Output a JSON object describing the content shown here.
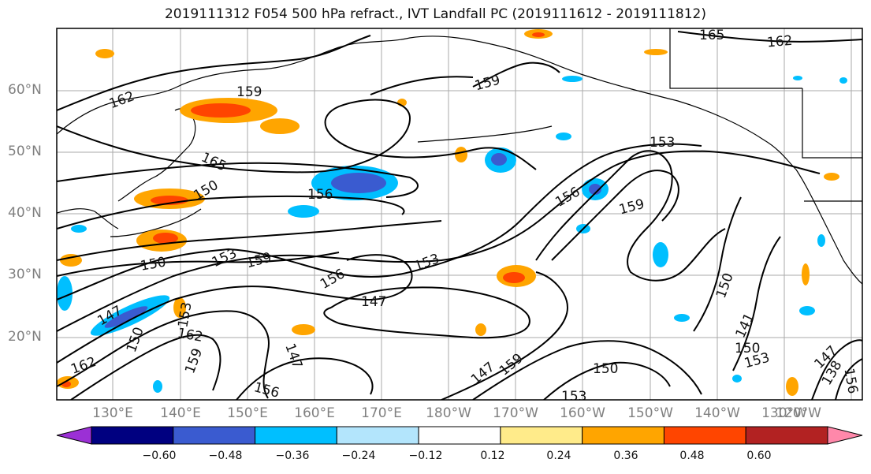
{
  "title": "2019111312 F054 500 hPa refract., IVT Landfall PC (2019111612 - 2019111812)",
  "lat_labels": [
    "60°N",
    "50°N",
    "40°N",
    "30°N",
    "20°N"
  ],
  "lon_labels": [
    "130°E",
    "140°E",
    "150°E",
    "160°E",
    "170°E",
    "180°W",
    "170°W",
    "160°W",
    "150°W",
    "140°W",
    "130°W",
    "120°W"
  ],
  "contour_labels": [
    "162",
    "165",
    "159",
    "162",
    "165",
    "159",
    "156",
    "153",
    "156",
    "159",
    "150",
    "153",
    "159",
    "156",
    "153",
    "147",
    "150",
    "147",
    "162",
    "153",
    "159",
    "147",
    "147",
    "159",
    "150",
    "153",
    "156",
    "150",
    "141",
    "150",
    "153",
    "147",
    "138",
    "156",
    "150",
    "162"
  ],
  "colorbar": {
    "ticks": [
      "−0.60",
      "−0.48",
      "−0.36",
      "−0.24",
      "−0.12",
      "0.12",
      "0.24",
      "0.36",
      "0.48",
      "0.60"
    ],
    "colors": [
      "#9b30d5",
      "#000080",
      "#3a5bd0",
      "#00bfff",
      "#b3e5fc",
      "#ffffff",
      "#ffeb8a",
      "#ffa500",
      "#ff4500",
      "#b22222",
      "#ff88aa"
    ]
  }
}
